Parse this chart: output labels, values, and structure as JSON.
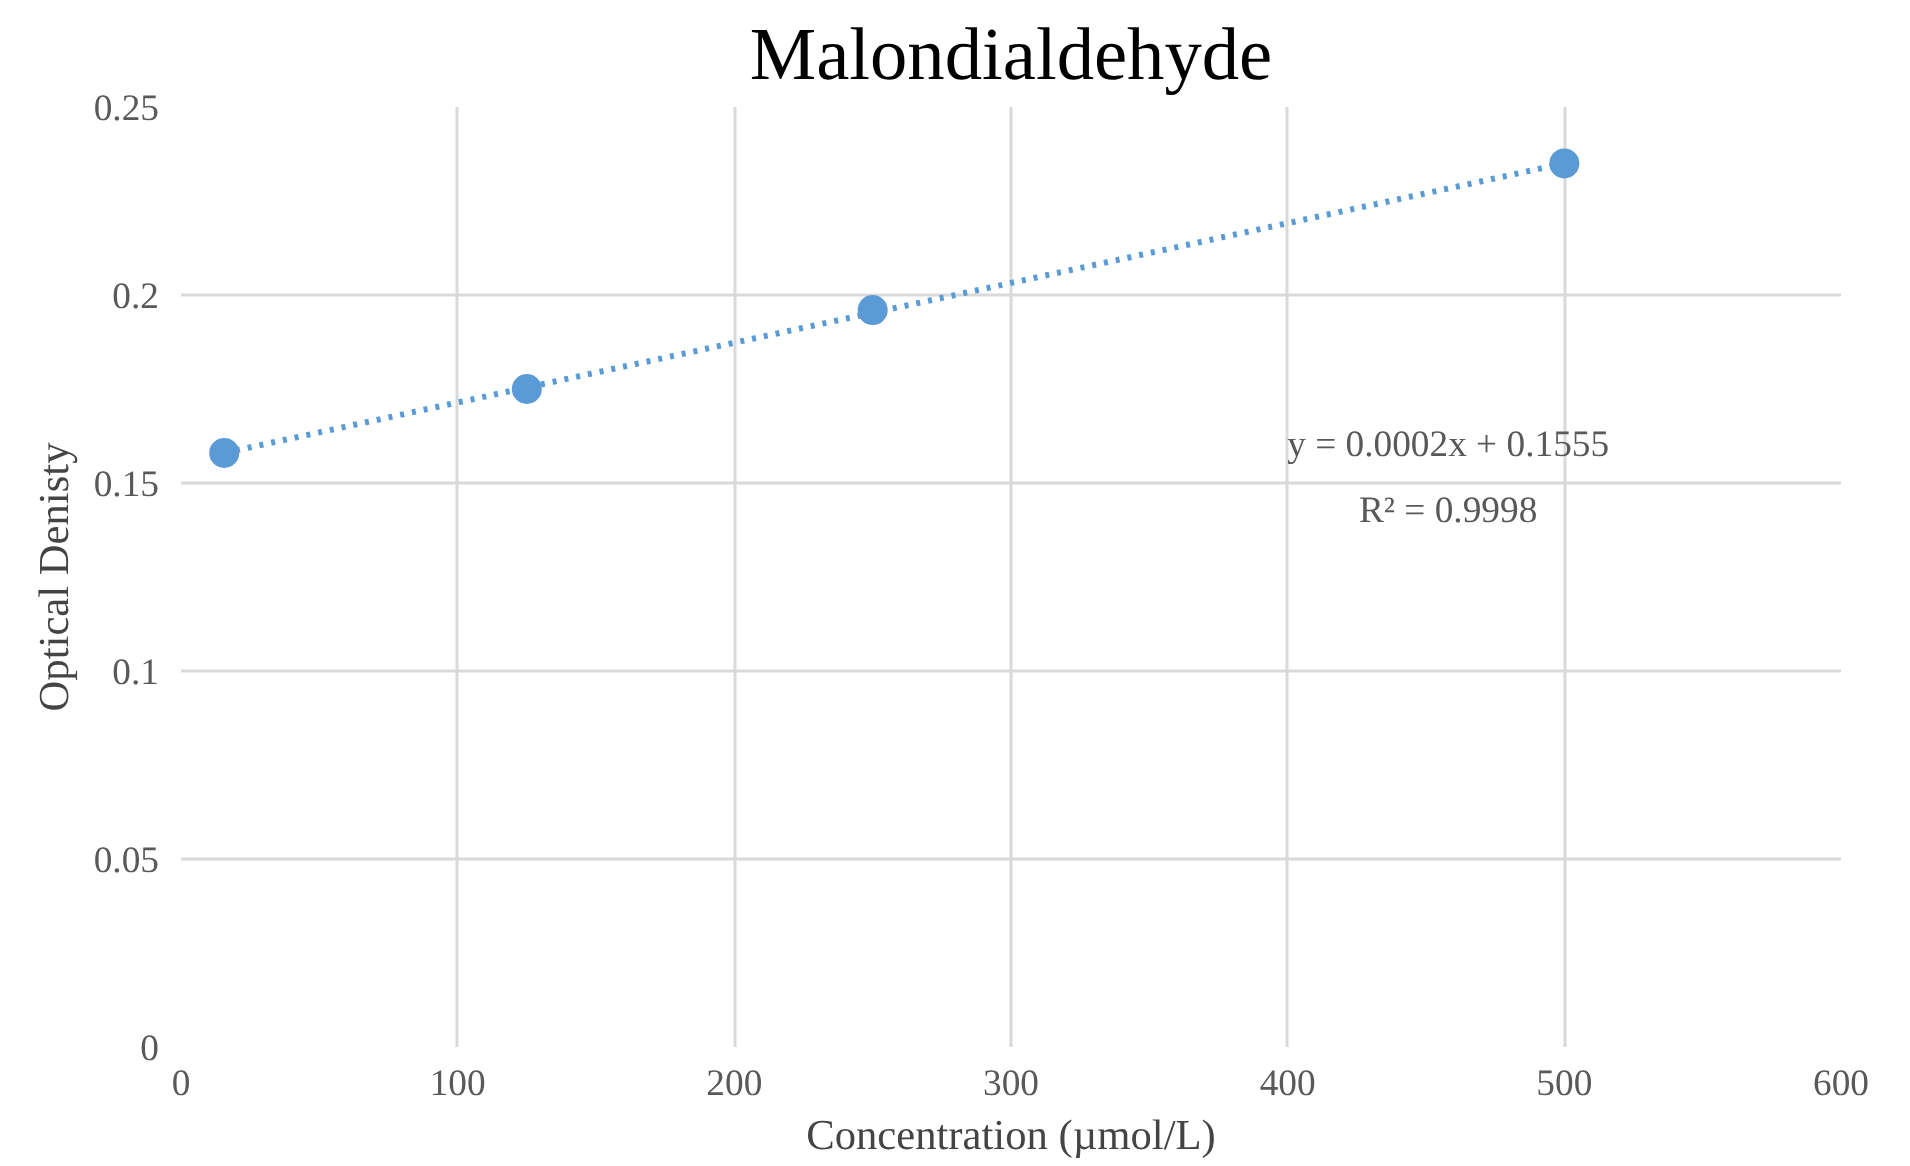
{
  "chart_data": {
    "type": "scatter",
    "title": "Malondialdehyde",
    "xlabel": "Concentration (µmol/L)",
    "ylabel": "Optical Denisty",
    "series": [
      {
        "color": "#5b9bd5",
        "x": [
          15.625,
          125,
          250,
          500
        ],
        "values": [
          0.158,
          0.175,
          0.196,
          0.235
        ],
        "marker": "circle"
      },
      {
        "type": "line",
        "color": "#5b9bd5",
        "x": [
          15.625,
          500
        ],
        "values": [
          0.158,
          0.235
        ],
        "line_style": "dotted"
      }
    ],
    "xlim": [
      0,
      600
    ],
    "xticks": [
      0,
      100,
      200,
      300,
      400,
      500,
      600
    ],
    "ylim": [
      0,
      0.25
    ],
    "yticks": [
      0,
      0.05,
      0.1,
      0.15,
      0.2,
      0.25
    ],
    "grid": true,
    "annotations": [
      "y = 0.0002x + 0.1555",
      "R² = 0.9998"
    ]
  }
}
